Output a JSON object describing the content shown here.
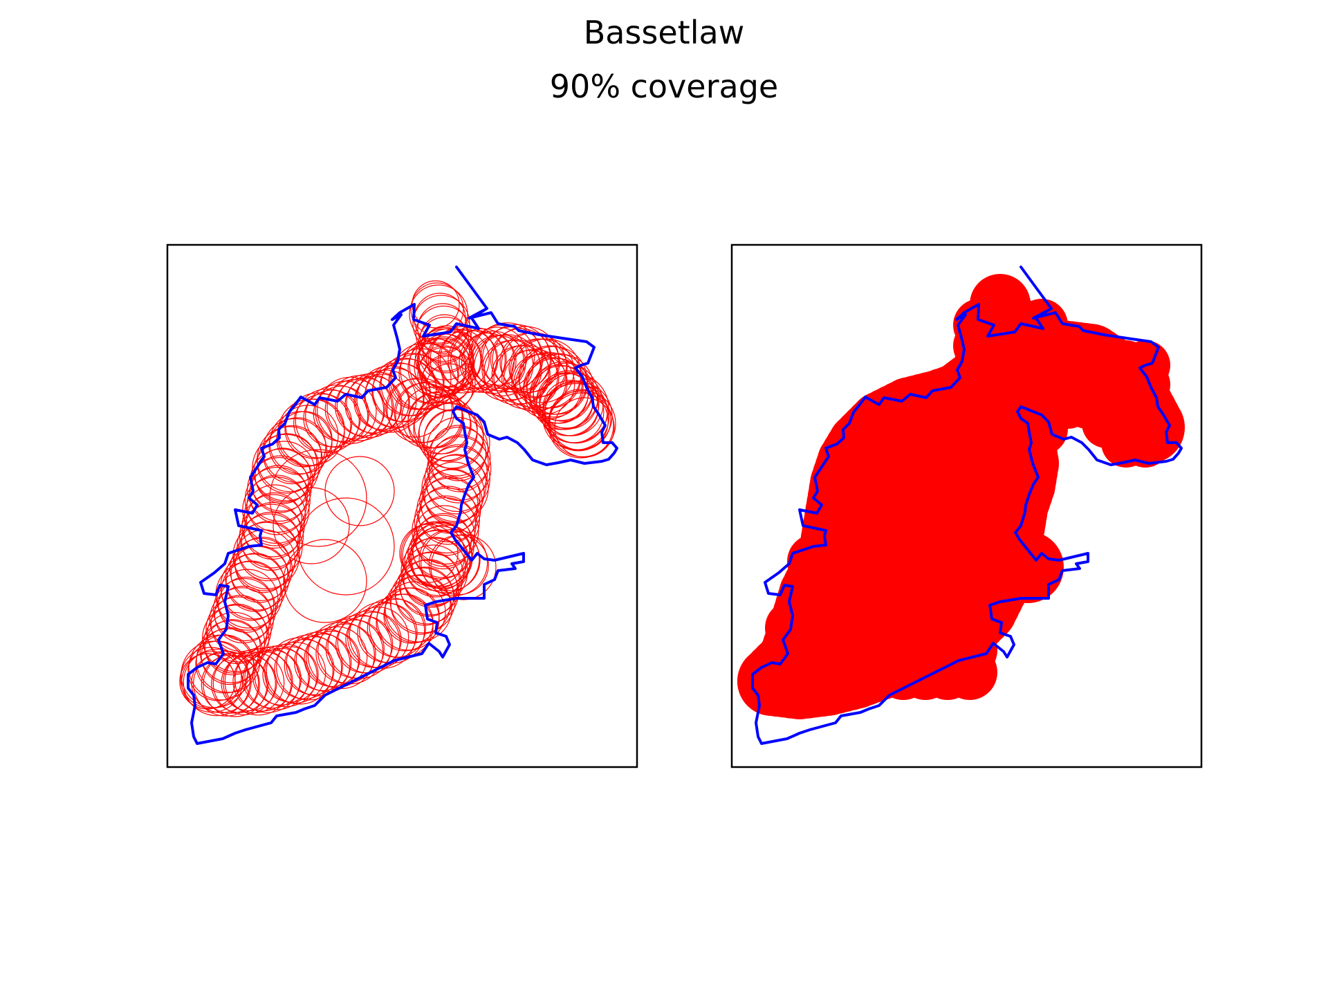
{
  "figure": {
    "title": "Bassetlaw",
    "subtitle": "90% coverage"
  },
  "colors": {
    "boundary": "#0000ff",
    "coverage": "#ff0000",
    "frame": "#000000",
    "background": "#ffffff"
  },
  "panels": [
    {
      "name": "circle-outlines",
      "style": "outline"
    },
    {
      "name": "filled-coverage",
      "style": "filled"
    }
  ]
}
